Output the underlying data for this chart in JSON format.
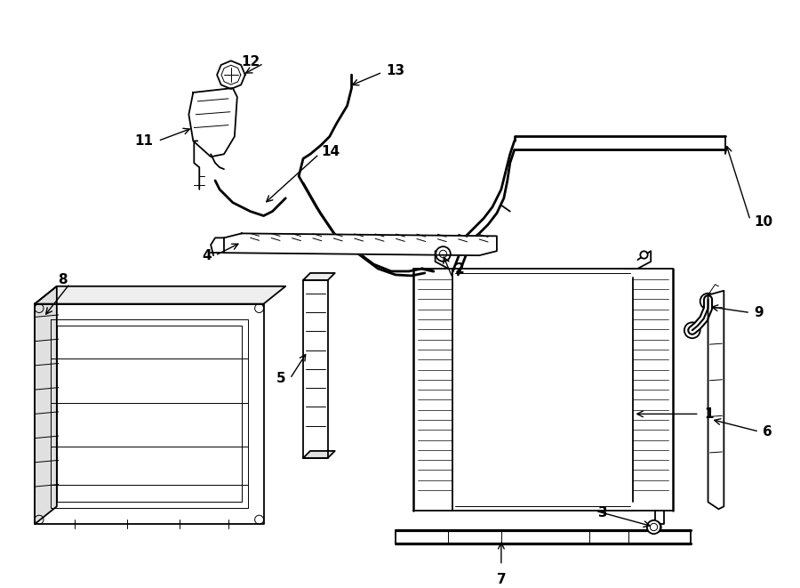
{
  "background_color": "#ffffff",
  "line_color": "#000000",
  "fig_width": 9.0,
  "fig_height": 6.61,
  "dpi": 100,
  "lw_main": 1.3,
  "lw_thick": 2.0,
  "lw_thin": 0.7,
  "label_fontsize": 11
}
